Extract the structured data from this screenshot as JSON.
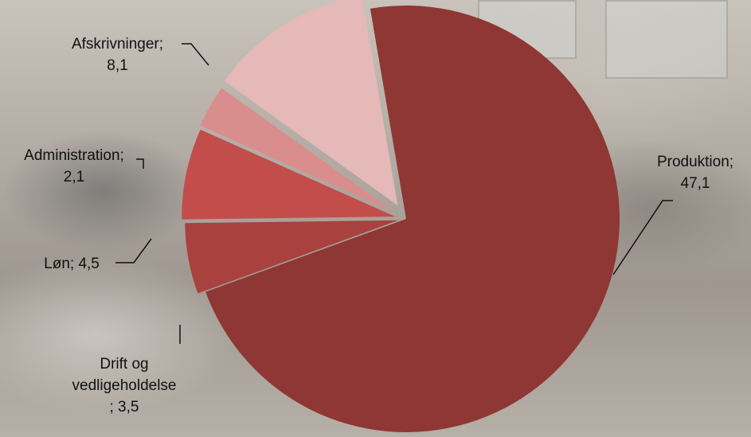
{
  "chart_data": {
    "type": "pie",
    "title": "",
    "slices": [
      {
        "label": "Produktion",
        "value": 47.1,
        "color": "#8e3735",
        "display": "Produktion;\n47,1"
      },
      {
        "label": "Drift og vedligeholdelse",
        "value": 3.5,
        "color": "#a9413f",
        "display": "Drift og\nvedligeholdelse\n; 3,5"
      },
      {
        "label": "Løn",
        "value": 4.5,
        "color": "#c24d4b",
        "display": "Løn; 4,5"
      },
      {
        "label": "Administration",
        "value": 2.1,
        "color": "#d98d8c",
        "display": "Administration;\n2,1"
      },
      {
        "label": "Afskrivninger",
        "value": 8.1,
        "color": "#e4b9b8",
        "display": "Afskrivninger;\n8,1"
      }
    ]
  }
}
